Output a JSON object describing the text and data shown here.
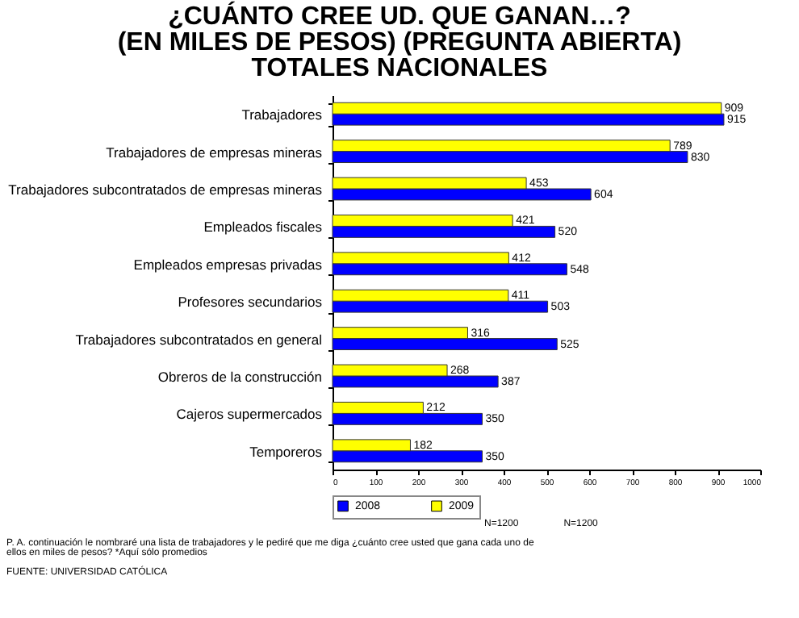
{
  "chart_data": {
    "type": "bar",
    "orientation": "horizontal",
    "title": "¿CUÁNTO CREE UD. QUE GANAN…?\n(EN MILES DE PESOS) (PREGUNTA ABIERTA)\nTOTALES NACIONALES",
    "categories": [
      "Trabajadores",
      "Trabajadores de empresas mineras",
      "Trabajadores subcontratados de empresas mineras",
      "Empleados fiscales",
      "Empleados empresas privadas",
      "Profesores secundarios",
      "Trabajadores subcontratados en general",
      "Obreros de la construcción",
      "Cajeros supermercados",
      "Temporeros"
    ],
    "series": [
      {
        "name": "2008",
        "color": "#0000ff",
        "values": [
          915,
          830,
          604,
          520,
          548,
          503,
          525,
          387,
          350,
          350
        ]
      },
      {
        "name": "2009",
        "color": "#ffff00",
        "values": [
          909,
          789,
          453,
          421,
          412,
          411,
          316,
          268,
          212,
          182
        ]
      }
    ],
    "xlim": [
      0,
      1000
    ],
    "xticks": [
      0,
      100,
      200,
      300,
      400,
      500,
      600,
      700,
      800,
      900,
      1000
    ],
    "data_labels": true,
    "legend": "bottom",
    "grid": false,
    "annotations": [
      "N=1200",
      "N=1200",
      "P. A. continuación le nombraré una lista de trabajadores y le pediré que me diga ¿cuánto cree usted que gana cada uno de ellos en miles de pesos? *Aquí sólo promedios",
      "FUENTE: UNIVERSIDAD CATÓLICA"
    ]
  }
}
